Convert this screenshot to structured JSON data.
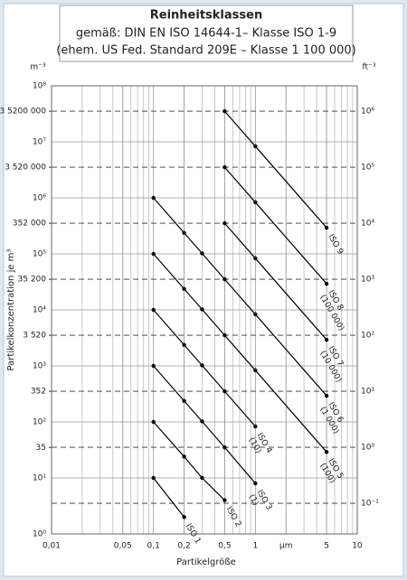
{
  "chart_data": {
    "type": "line",
    "title": "Reinheitsklassen",
    "subtitle": [
      "gemäß: DIN EN ISO 14644-1– Klasse ISO 1-9",
      "(ehem. US Fed. Standard 209E – Klasse 1  100 000)"
    ],
    "y_unit": "m⁻³",
    "y2_unit": "ft⁻³",
    "ylabel": "Partikelkonzentration je m³",
    "xlabel": "Partikelgröße",
    "log_x": true,
    "log_y": true,
    "grid": true,
    "color": "#000000",
    "xlim": [
      0.01,
      10
    ],
    "xticks": [
      {
        "value": 0.01,
        "label": "0,01"
      },
      {
        "value": 0.05,
        "label": "0,05"
      },
      {
        "value": 0.1,
        "label": "0,1"
      },
      {
        "value": 0.2,
        "label": "0,2"
      },
      {
        "value": 0.5,
        "label": "0,5"
      },
      1,
      {
        "value": 2,
        "label": "µm"
      },
      5,
      10
    ],
    "ylim": [
      1,
      100000000
    ],
    "yticks": [
      {
        "value": 1,
        "label": "10⁰"
      },
      {
        "value": 10,
        "label": "10¹"
      },
      {
        "value": 100,
        "label": "10²"
      },
      {
        "value": 1000,
        "label": "10³"
      },
      {
        "value": 10000,
        "label": "10⁴"
      },
      {
        "value": 100000,
        "label": "10⁵"
      },
      {
        "value": 1000000,
        "label": "10⁶"
      },
      {
        "value": 10000000,
        "label": "10⁷"
      },
      {
        "value": 100000000,
        "label": "10⁸"
      }
    ],
    "yticks_dashed": [
      {
        "value": 35,
        "label": "35"
      },
      352,
      {
        "value": 3520,
        "label": "3 520"
      },
      {
        "value": 35200,
        "label": "35 200"
      },
      {
        "value": 352000,
        "label": "352 000"
      },
      {
        "value": 3520000,
        "label": "3 520 000"
      },
      {
        "value": 35200000,
        "label": "3 5200 000"
      }
    ],
    "y2lim": [
      0.0283168,
      2831684.7
    ],
    "y2ticks": [
      {
        "value": 0.1,
        "label": "10⁻¹"
      },
      {
        "value": 1,
        "label": "10⁰"
      },
      {
        "value": 10,
        "label": "10¹"
      },
      {
        "value": 100,
        "label": "10²"
      },
      {
        "value": 1000,
        "label": "10³"
      },
      {
        "value": 10000,
        "label": "10⁴"
      },
      {
        "value": 100000,
        "label": "10⁵"
      },
      {
        "value": 1000000,
        "label": "10⁶"
      }
    ],
    "series": [
      {
        "name": "ISO 1",
        "x": [
          0.1,
          0.2
        ],
        "values": [
          10,
          2
        ]
      },
      {
        "name": "ISO 2",
        "x": [
          0.1,
          0.2,
          0.3,
          0.5
        ],
        "values": [
          100,
          24,
          10,
          4
        ]
      },
      {
        "name": "ISO 3",
        "note": "(1)",
        "x": [
          0.1,
          0.2,
          0.3,
          0.5,
          1
        ],
        "values": [
          1000,
          237,
          102,
          35,
          8
        ]
      },
      {
        "name": "ISO 4",
        "note": "(10)",
        "x": [
          0.1,
          0.2,
          0.3,
          0.5,
          1
        ],
        "values": [
          10000,
          2370,
          1020,
          352,
          83
        ]
      },
      {
        "name": "ISO 5",
        "note": "(100)",
        "x": [
          0.1,
          0.2,
          0.3,
          0.5,
          1,
          5
        ],
        "values": [
          100000,
          23700,
          10200,
          3520,
          832,
          29
        ]
      },
      {
        "name": "ISO 6",
        "note": "(1 000)",
        "x": [
          0.1,
          0.2,
          0.3,
          0.5,
          1,
          5
        ],
        "values": [
          1000000,
          237000,
          102000,
          35200,
          8320,
          293
        ]
      },
      {
        "name": "ISO 7",
        "note": "(10 000)",
        "x": [
          0.5,
          1,
          5
        ],
        "values": [
          352000,
          83200,
          2930
        ]
      },
      {
        "name": "ISO 8",
        "note": "(100 000)",
        "x": [
          0.5,
          1,
          5
        ],
        "values": [
          3520000,
          832000,
          29300
        ]
      },
      {
        "name": "ISO 9",
        "x": [
          0.5,
          1,
          5
        ],
        "values": [
          35200000,
          8320000,
          293000
        ]
      }
    ]
  }
}
